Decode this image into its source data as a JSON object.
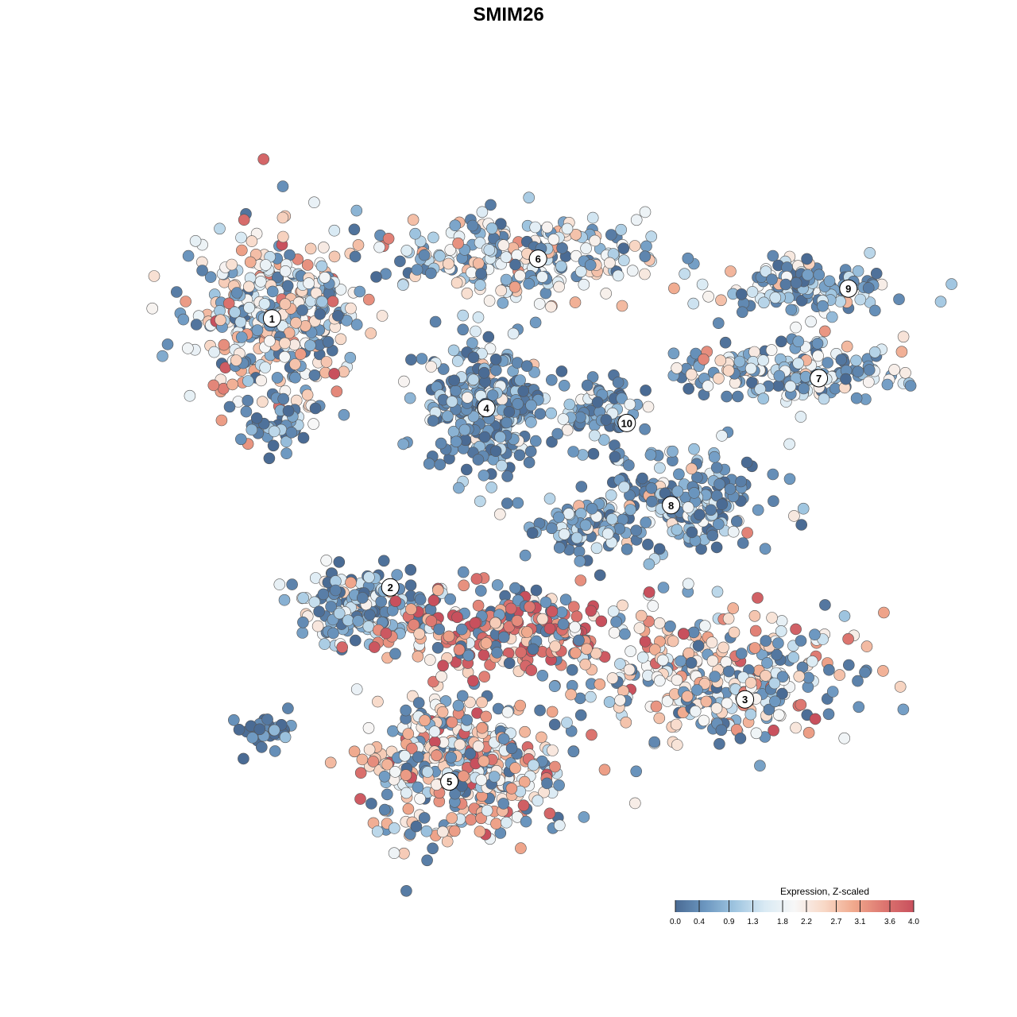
{
  "chart_data": {
    "type": "scatter",
    "title": "SMIM26",
    "xlabel": "",
    "ylabel": "",
    "grid": false,
    "legend": {
      "title": "Expression, Z-scaled",
      "placement": "bottom-right",
      "ticks": [
        "0.0",
        "0.4",
        "0.9",
        "1.3",
        "1.8",
        "2.2",
        "2.7",
        "3.1",
        "3.6",
        "4.0"
      ],
      "range": [
        0,
        4
      ]
    },
    "colorscale": [
      "#4a6b94",
      "#6c97c0",
      "#9fc5e0",
      "#d9eaf4",
      "#f7f7f7",
      "#f8d8c6",
      "#f0a88c",
      "#dd7670",
      "#c8505d"
    ],
    "point_style": {
      "stroke": "#555555"
    },
    "clusters": [
      {
        "label": "1",
        "x": -32,
        "y": 28,
        "mean_expr": 2.0
      },
      {
        "label": "2",
        "x": -16,
        "y": -8,
        "mean_expr": 1.0
      },
      {
        "label": "3",
        "x": 32,
        "y": -23,
        "mean_expr": 2.1
      },
      {
        "label": "4",
        "x": -3,
        "y": 16,
        "mean_expr": 0.6
      },
      {
        "label": "5",
        "x": -8,
        "y": -34,
        "mean_expr": 2.4
      },
      {
        "label": "6",
        "x": 4,
        "y": 36,
        "mean_expr": 1.8
      },
      {
        "label": "7",
        "x": 42,
        "y": 20,
        "mean_expr": 1.5
      },
      {
        "label": "8",
        "x": 22,
        "y": 3,
        "mean_expr": 0.7
      },
      {
        "label": "9",
        "x": 46,
        "y": 32,
        "mean_expr": 1.3
      },
      {
        "label": "10",
        "x": 16,
        "y": 14,
        "mean_expr": 0.6
      }
    ]
  }
}
